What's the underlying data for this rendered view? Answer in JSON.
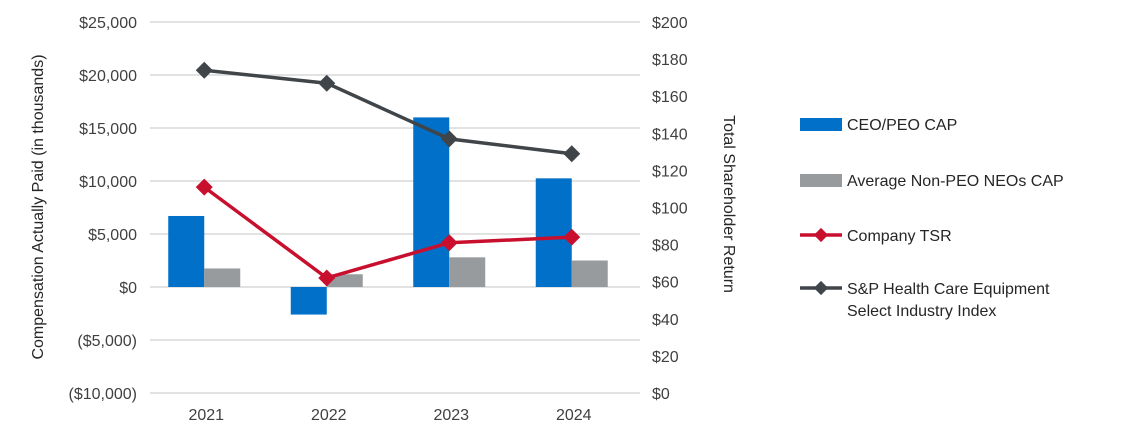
{
  "chart_data": {
    "type": "bar+line",
    "categories": [
      "2021",
      "2022",
      "2023",
      "2024"
    ],
    "ylabel_left": "Compensation Actually Paid (in thousands)",
    "ylabel_right": "Total Shareholder Return",
    "ylim_left": [
      -10000,
      25000
    ],
    "ylim_right": [
      0,
      200
    ],
    "left_ticks": [
      "$25,000",
      "$20,000",
      "$15,000",
      "$10,000",
      "$5,000",
      "$0",
      "($5,000)",
      "($10,000)"
    ],
    "left_tick_values": [
      25000,
      20000,
      15000,
      10000,
      5000,
      0,
      -5000,
      -10000
    ],
    "right_ticks": [
      "$200",
      "$180",
      "$160",
      "$140",
      "$120",
      "$100",
      "$80",
      "$60",
      "$40",
      "$20",
      "$0"
    ],
    "right_tick_values": [
      200,
      180,
      160,
      140,
      120,
      100,
      80,
      60,
      40,
      20,
      0
    ],
    "grid": true,
    "legend_position": "right",
    "series": [
      {
        "name": "CEO/PEO CAP",
        "kind": "bar",
        "axis": "left",
        "color": "#0070C8",
        "values": [
          6700,
          -2600,
          16000,
          10250
        ]
      },
      {
        "name": "Average Non-PEO NEOs CAP",
        "kind": "bar",
        "axis": "left",
        "color": "#989B9E",
        "values": [
          1750,
          1200,
          2800,
          2500
        ]
      },
      {
        "name": "Company TSR",
        "kind": "line",
        "axis": "right",
        "color": "#C8102E",
        "values": [
          111,
          62,
          81,
          84
        ]
      },
      {
        "name": "S&P Health Care Equipment Select Industry Index",
        "name_lines": [
          "S&P Health Care Equipment",
          "Select Industry Index"
        ],
        "kind": "line",
        "axis": "right",
        "color": "#404549",
        "values": [
          174,
          167,
          137,
          129
        ]
      }
    ]
  }
}
